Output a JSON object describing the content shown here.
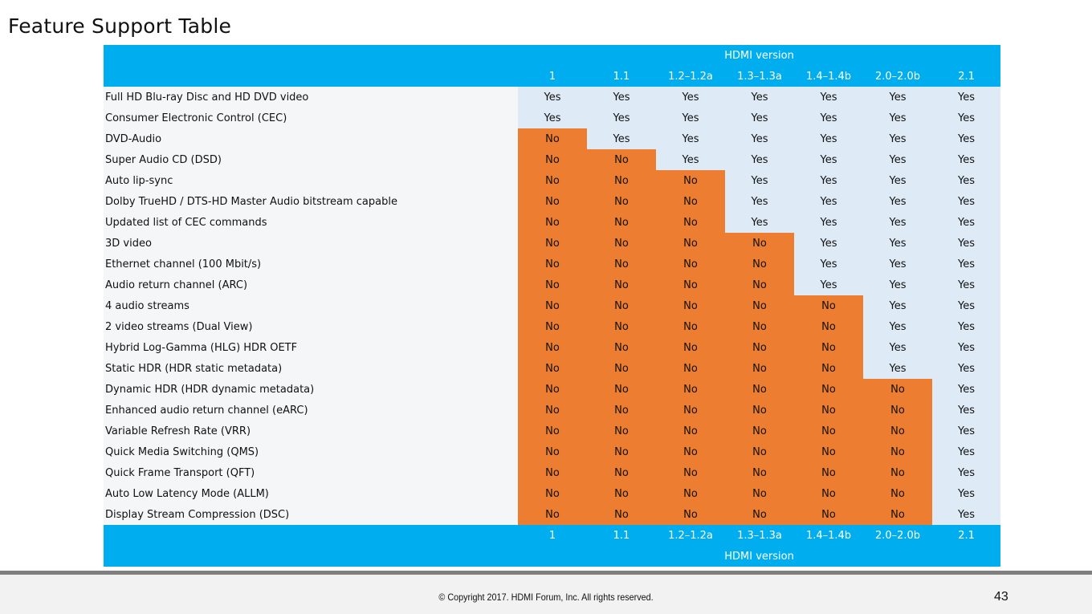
{
  "title": "Feature Support Table",
  "header_label": "HDMI version",
  "versions": [
    "1",
    "1.1",
    "1.2–1.2a",
    "1.3–1.3a",
    "1.4–1.4b",
    "2.0–2.0b",
    "2.1"
  ],
  "rows": [
    {
      "feature": "Full HD Blu-ray Disc and HD DVD video",
      "values": [
        "Yes",
        "Yes",
        "Yes",
        "Yes",
        "Yes",
        "Yes",
        "Yes"
      ]
    },
    {
      "feature": "Consumer Electronic Control (CEC)",
      "values": [
        "Yes",
        "Yes",
        "Yes",
        "Yes",
        "Yes",
        "Yes",
        "Yes"
      ]
    },
    {
      "feature": "DVD-Audio",
      "values": [
        "No",
        "Yes",
        "Yes",
        "Yes",
        "Yes",
        "Yes",
        "Yes"
      ]
    },
    {
      "feature": "Super Audio CD (DSD)",
      "values": [
        "No",
        "No",
        "Yes",
        "Yes",
        "Yes",
        "Yes",
        "Yes"
      ]
    },
    {
      "feature": "Auto lip-sync",
      "values": [
        "No",
        "No",
        "No",
        "Yes",
        "Yes",
        "Yes",
        "Yes"
      ]
    },
    {
      "feature": "Dolby TrueHD / DTS-HD Master Audio bitstream capable",
      "values": [
        "No",
        "No",
        "No",
        "Yes",
        "Yes",
        "Yes",
        "Yes"
      ]
    },
    {
      "feature": "Updated list of CEC commands",
      "values": [
        "No",
        "No",
        "No",
        "Yes",
        "Yes",
        "Yes",
        "Yes"
      ]
    },
    {
      "feature": "3D video",
      "values": [
        "No",
        "No",
        "No",
        "No",
        "Yes",
        "Yes",
        "Yes"
      ]
    },
    {
      "feature": "Ethernet channel (100 Mbit/s)",
      "values": [
        "No",
        "No",
        "No",
        "No",
        "Yes",
        "Yes",
        "Yes"
      ]
    },
    {
      "feature": "Audio return channel (ARC)",
      "values": [
        "No",
        "No",
        "No",
        "No",
        "Yes",
        "Yes",
        "Yes"
      ]
    },
    {
      "feature": "4 audio streams",
      "values": [
        "No",
        "No",
        "No",
        "No",
        "No",
        "Yes",
        "Yes"
      ]
    },
    {
      "feature": "2 video streams (Dual View)",
      "values": [
        "No",
        "No",
        "No",
        "No",
        "No",
        "Yes",
        "Yes"
      ]
    },
    {
      "feature": "Hybrid Log-Gamma (HLG) HDR OETF",
      "values": [
        "No",
        "No",
        "No",
        "No",
        "No",
        "Yes",
        "Yes"
      ]
    },
    {
      "feature": "Static HDR (HDR static metadata)",
      "values": [
        "No",
        "No",
        "No",
        "No",
        "No",
        "Yes",
        "Yes"
      ]
    },
    {
      "feature": "Dynamic HDR (HDR dynamic metadata)",
      "values": [
        "No",
        "No",
        "No",
        "No",
        "No",
        "No",
        "Yes"
      ]
    },
    {
      "feature": "Enhanced audio return channel (eARC)",
      "values": [
        "No",
        "No",
        "No",
        "No",
        "No",
        "No",
        "Yes"
      ]
    },
    {
      "feature": "Variable Refresh Rate (VRR)",
      "values": [
        "No",
        "No",
        "No",
        "No",
        "No",
        "No",
        "Yes"
      ]
    },
    {
      "feature": "Quick Media Switching (QMS)",
      "values": [
        "No",
        "No",
        "No",
        "No",
        "No",
        "No",
        "Yes"
      ]
    },
    {
      "feature": "Quick Frame Transport (QFT)",
      "values": [
        "No",
        "No",
        "No",
        "No",
        "No",
        "No",
        "Yes"
      ]
    },
    {
      "feature": "Auto Low Latency Mode (ALLM)",
      "values": [
        "No",
        "No",
        "No",
        "No",
        "No",
        "No",
        "Yes"
      ]
    },
    {
      "feature": "Display Stream Compression (DSC)",
      "values": [
        "No",
        "No",
        "No",
        "No",
        "No",
        "No",
        "Yes"
      ]
    }
  ],
  "colors": {
    "header": "#00aeef",
    "yes": "#deebf7",
    "no": "#ed7d31",
    "feature_bg": "#f4f6f8"
  },
  "footer": {
    "copyright": "© Copyright 2017. HDMI Forum, Inc.  All rights reserved.",
    "page_number": "43"
  }
}
